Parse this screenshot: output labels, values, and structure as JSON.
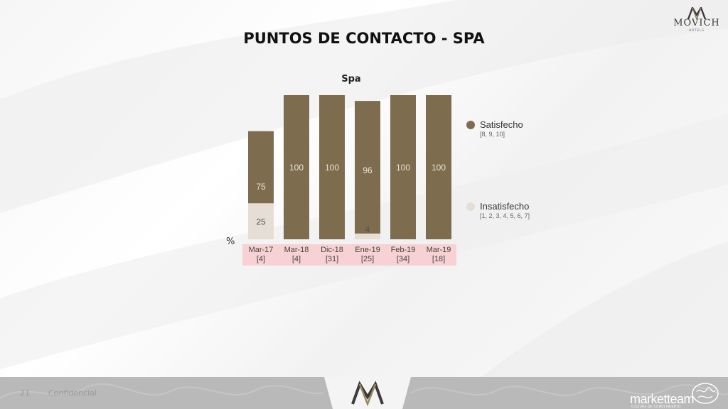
{
  "header": {
    "title": "PUNTOS DE CONTACTO - SPA",
    "logo_name": "MOVICH",
    "logo_sub": "HOTELS"
  },
  "chart_data": {
    "type": "bar",
    "stacked": true,
    "title": "Spa",
    "ylabel": "%",
    "ylim": [
      0,
      100
    ],
    "categories": [
      "Mar-17",
      "Mar-18",
      "Dic-18",
      "Ene-19",
      "Feb-19",
      "Mar-19"
    ],
    "category_counts": [
      "[4]",
      "[4]",
      "[31]",
      "[25]",
      "[34]",
      "[18]"
    ],
    "series": [
      {
        "name": "Satisfecho",
        "scale": "[8, 9, 10]",
        "values": [
          75,
          100,
          100,
          96,
          100,
          100
        ],
        "color": "#7d6d4e"
      },
      {
        "name": "Insatisfecho",
        "scale": "[1, 2, 3, 4, 5, 6, 7]",
        "values": [
          25,
          0,
          0,
          4,
          0,
          0
        ],
        "color": "#e6ded5"
      }
    ],
    "legend_position": "right",
    "grid": false
  },
  "footer": {
    "page_number": "21",
    "confidential": "Confidencial",
    "brand": "marketteam",
    "brand_sub": "CULTURA DE CONOCIMIENTO"
  }
}
